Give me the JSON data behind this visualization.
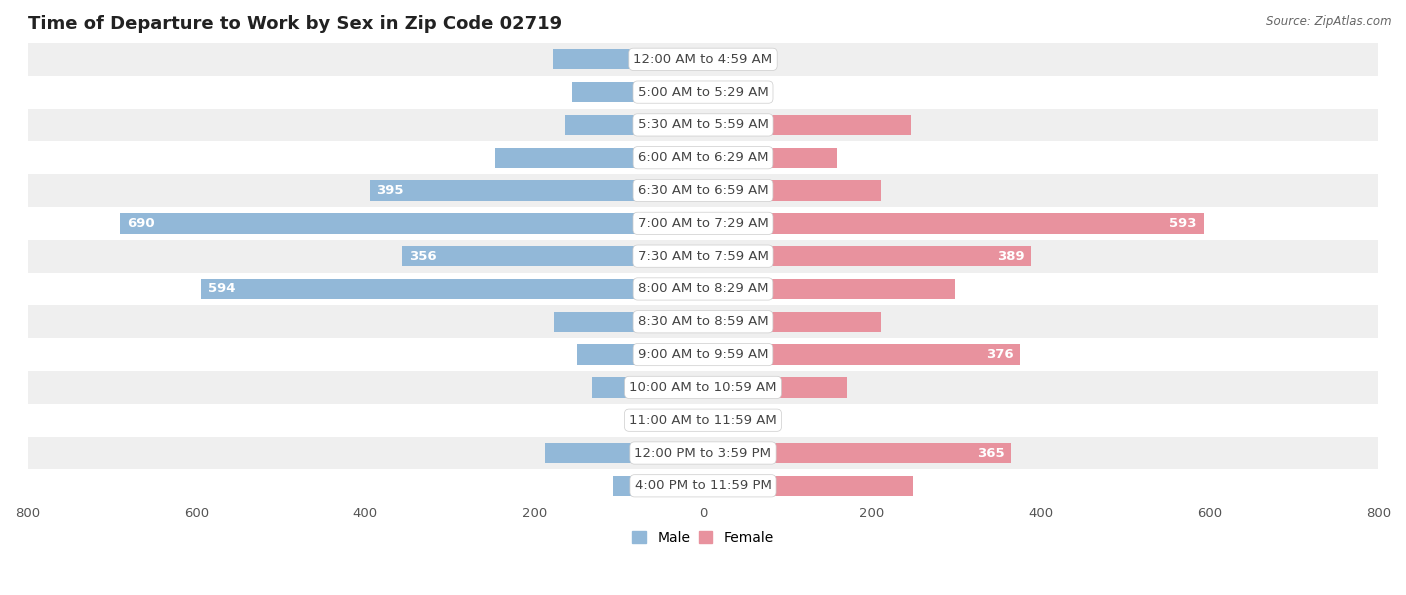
{
  "title": "Time of Departure to Work by Sex in Zip Code 02719",
  "source": "Source: ZipAtlas.com",
  "categories": [
    "12:00 AM to 4:59 AM",
    "5:00 AM to 5:29 AM",
    "5:30 AM to 5:59 AM",
    "6:00 AM to 6:29 AM",
    "6:30 AM to 6:59 AM",
    "7:00 AM to 7:29 AM",
    "7:30 AM to 7:59 AM",
    "8:00 AM to 8:29 AM",
    "8:30 AM to 8:59 AM",
    "9:00 AM to 9:59 AM",
    "10:00 AM to 10:59 AM",
    "11:00 AM to 11:59 AM",
    "12:00 PM to 3:59 PM",
    "4:00 PM to 11:59 PM"
  ],
  "male_values": [
    178,
    155,
    163,
    246,
    395,
    690,
    356,
    594,
    177,
    149,
    132,
    46,
    187,
    107
  ],
  "female_values": [
    36,
    59,
    246,
    159,
    211,
    593,
    389,
    298,
    211,
    376,
    171,
    51,
    365,
    249
  ],
  "male_color": "#92b8d8",
  "female_color": "#e8929e",
  "label_color_outside": "#777777",
  "label_color_inside": "#ffffff",
  "background_row_even": "#efefef",
  "background_row_odd": "#ffffff",
  "xlim": 800,
  "bar_height": 0.62,
  "title_fontsize": 13,
  "label_fontsize": 9.5,
  "tick_fontsize": 9.5,
  "category_fontsize": 9.5,
  "legend_fontsize": 10,
  "inside_label_threshold": 350
}
